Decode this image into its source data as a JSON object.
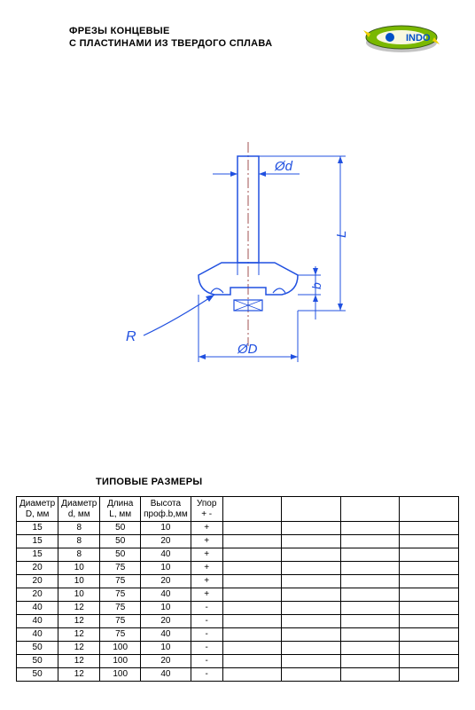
{
  "header": {
    "title_line1": "ФРЕЗЫ КОНЦЕВЫЕ",
    "title_line2": "С ПЛАСТИНАМИ ИЗ ТВЕРДОГО СПЛАВА",
    "logo_text": "INDO"
  },
  "diagram": {
    "label_d": "Ød",
    "label_D": "ØD",
    "label_L": "L",
    "label_b": "b",
    "label_R": "R",
    "stroke_color": "#2050e0",
    "centerline_color": "#a05050",
    "font_size_pt": 14,
    "font_style": "italic"
  },
  "table": {
    "title": "ТИПОВЫЕ РАЗМЕРЫ",
    "columns": [
      {
        "line1": "Диаметр",
        "line2": "D, мм",
        "class": "col-D"
      },
      {
        "line1": "Диаметр",
        "line2": "d, мм",
        "class": "col-d"
      },
      {
        "line1": "Длина",
        "line2": "L, мм",
        "class": "col-L"
      },
      {
        "line1": "Высота",
        "line2": "проф.b,мм",
        "class": "col-b"
      },
      {
        "line1": "Упор",
        "line2": "+ -",
        "class": "col-u"
      },
      {
        "line1": "",
        "line2": "",
        "class": "col-e"
      },
      {
        "line1": "",
        "line2": "",
        "class": "col-e"
      },
      {
        "line1": "",
        "line2": "",
        "class": "col-e"
      },
      {
        "line1": "",
        "line2": "",
        "class": "col-e"
      }
    ],
    "rows": [
      [
        "15",
        "8",
        "50",
        "10",
        "+",
        "",
        "",
        "",
        ""
      ],
      [
        "15",
        "8",
        "50",
        "20",
        "+",
        "",
        "",
        "",
        ""
      ],
      [
        "15",
        "8",
        "50",
        "40",
        "+",
        "",
        "",
        "",
        ""
      ],
      [
        "20",
        "10",
        "75",
        "10",
        "+",
        "",
        "",
        "",
        ""
      ],
      [
        "20",
        "10",
        "75",
        "20",
        "+",
        "",
        "",
        "",
        ""
      ],
      [
        "20",
        "10",
        "75",
        "40",
        "+",
        "",
        "",
        "",
        ""
      ],
      [
        "40",
        "12",
        "75",
        "10",
        "-",
        "",
        "",
        "",
        ""
      ],
      [
        "40",
        "12",
        "75",
        "20",
        "-",
        "",
        "",
        "",
        ""
      ],
      [
        "40",
        "12",
        "75",
        "40",
        "-",
        "",
        "",
        "",
        ""
      ],
      [
        "50",
        "12",
        "100",
        "10",
        "-",
        "",
        "",
        "",
        ""
      ],
      [
        "50",
        "12",
        "100",
        "20",
        "-",
        "",
        "",
        "",
        ""
      ],
      [
        "50",
        "12",
        "100",
        "40",
        "-",
        "",
        "",
        "",
        ""
      ]
    ]
  },
  "colors": {
    "logo_green": "#7ab800",
    "logo_dark": "#3a5a1a",
    "logo_blue": "#0050c8",
    "logo_yellow": "#f0d000"
  }
}
